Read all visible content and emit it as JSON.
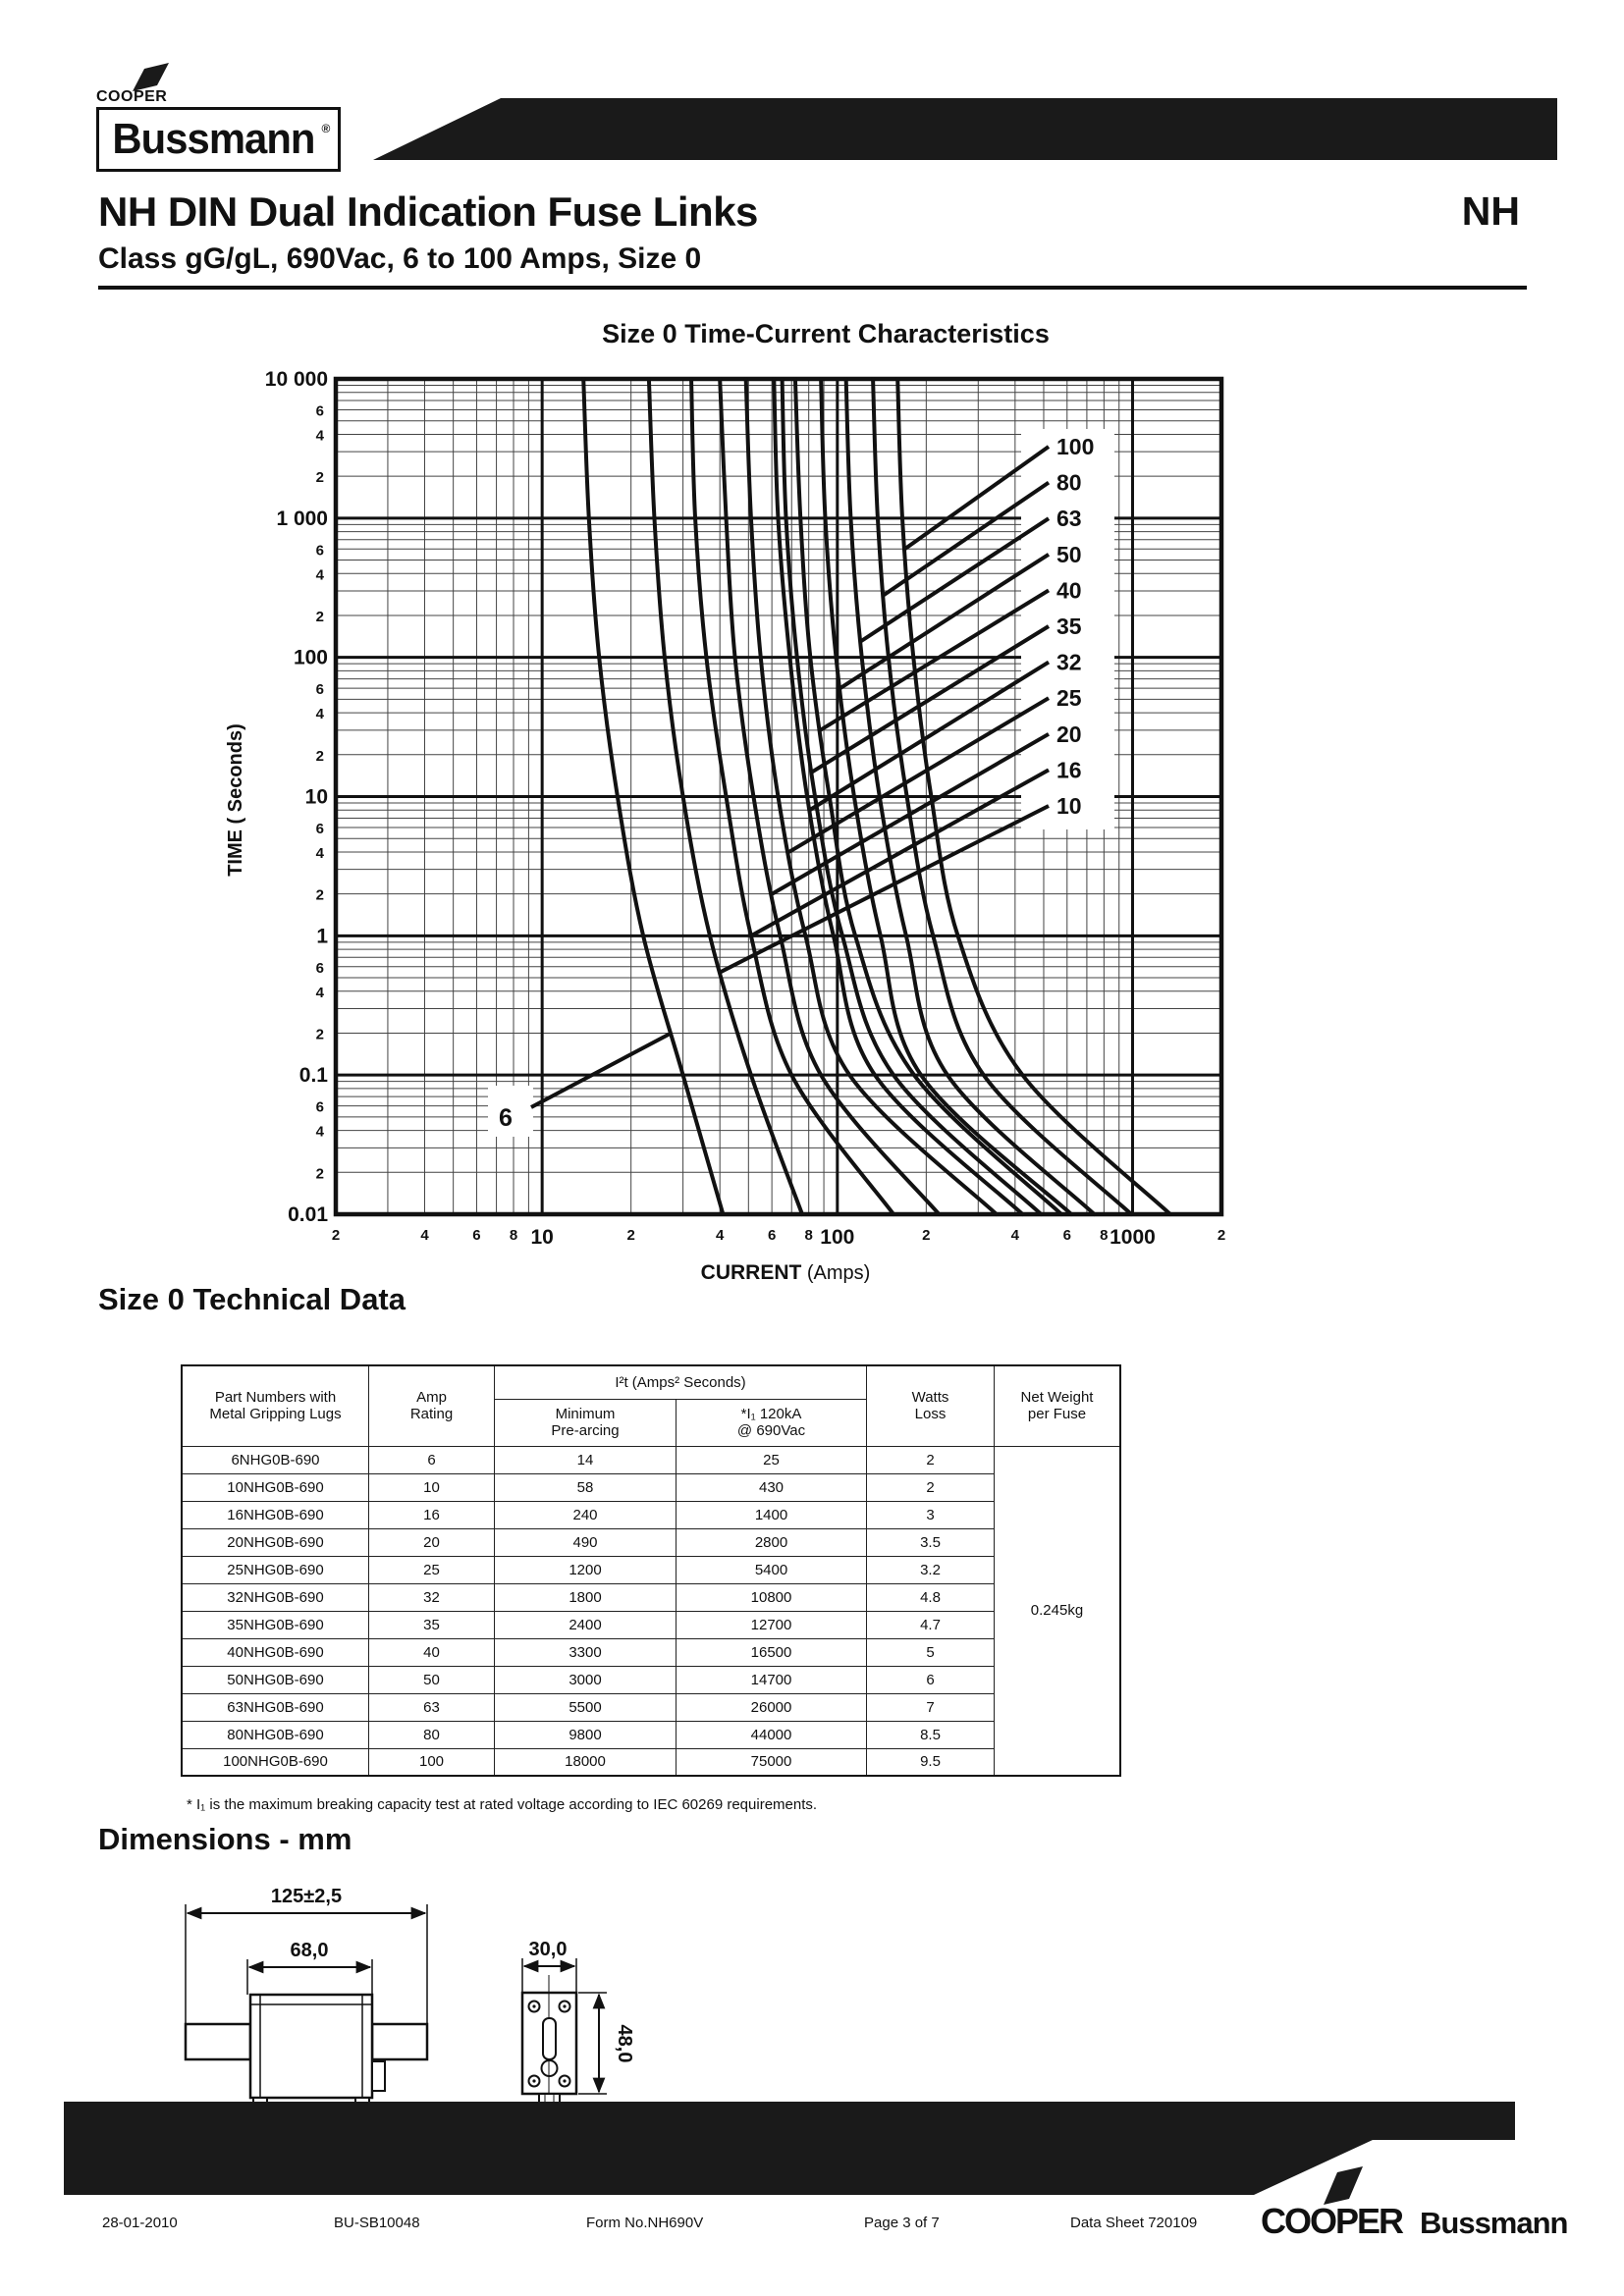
{
  "header": {
    "brand_top": "COOPER",
    "brand_box": "Bussmann",
    "brand_reg": "®",
    "title": "NH DIN Dual Indication Fuse Links",
    "corner": "NH",
    "subtitle": "Class gG/gL, 690Vac, 6 to 100 Amps, Size 0"
  },
  "chart_data": {
    "type": "line",
    "title": "Size 0 Time-Current Characteristics",
    "xlabel": "CURRENT",
    "xlabel_unit": "(Amps)",
    "ylabel": "TIME ( Seconds)",
    "x_scale": "log",
    "y_scale": "log",
    "xlim": [
      2,
      2000
    ],
    "ylim": [
      0.01,
      10000
    ],
    "grid": true,
    "x_decade_ticks": [
      10,
      100,
      1000
    ],
    "x_minor_tick_labels": [
      2,
      4,
      6,
      8
    ],
    "y_decade_ticks": [
      10000,
      1000,
      100,
      10,
      1,
      0.1,
      0.01
    ],
    "y_decade_labels": [
      "10 000",
      "1 000",
      "100",
      "10",
      "1",
      "0.1",
      "0.01"
    ],
    "y_minor_tick_labels": [
      6,
      4,
      2
    ],
    "series": [
      {
        "name": "6",
        "points": [
          [
            13.8,
            10000
          ],
          [
            14.4,
            1000
          ],
          [
            15.6,
            100
          ],
          [
            18,
            10
          ],
          [
            22,
            1
          ],
          [
            30,
            0.1
          ],
          [
            41,
            0.01
          ]
        ]
      },
      {
        "name": "10",
        "points": [
          [
            23,
            10000
          ],
          [
            24,
            1000
          ],
          [
            26,
            100
          ],
          [
            30,
            10
          ],
          [
            37,
            1
          ],
          [
            51,
            0.1
          ],
          [
            76,
            0.01
          ]
        ]
      },
      {
        "name": "16",
        "points": [
          [
            32,
            10000
          ],
          [
            33,
            1000
          ],
          [
            36,
            100
          ],
          [
            42,
            10
          ],
          [
            51,
            1
          ],
          [
            70,
            0.1
          ],
          [
            155,
            0.01
          ]
        ]
      },
      {
        "name": "20",
        "points": [
          [
            40,
            10000
          ],
          [
            42,
            1000
          ],
          [
            45,
            100
          ],
          [
            52,
            10
          ],
          [
            64,
            1
          ],
          [
            88,
            0.1
          ],
          [
            221,
            0.01
          ]
        ]
      },
      {
        "name": "25",
        "points": [
          [
            49,
            10000
          ],
          [
            51,
            1000
          ],
          [
            55,
            100
          ],
          [
            63,
            10
          ],
          [
            78,
            1
          ],
          [
            110,
            0.1
          ],
          [
            346,
            0.01
          ]
        ]
      },
      {
        "name": "32",
        "points": [
          [
            61,
            10000
          ],
          [
            63,
            1000
          ],
          [
            69,
            100
          ],
          [
            79,
            10
          ],
          [
            97,
            1
          ],
          [
            134,
            0.1
          ],
          [
            424,
            0.01
          ]
        ]
      },
      {
        "name": "35",
        "points": [
          [
            65,
            10000
          ],
          [
            67,
            1000
          ],
          [
            73,
            100
          ],
          [
            84,
            10
          ],
          [
            104,
            1
          ],
          [
            155,
            0.1
          ],
          [
            490,
            0.01
          ]
        ]
      },
      {
        "name": "40",
        "points": [
          [
            72,
            10000
          ],
          [
            75,
            1000
          ],
          [
            81,
            100
          ],
          [
            94,
            10
          ],
          [
            115,
            1
          ],
          [
            182,
            0.1
          ],
          [
            574,
            0.01
          ]
        ]
      },
      {
        "name": "50",
        "points": [
          [
            88,
            10000
          ],
          [
            91,
            1000
          ],
          [
            99,
            100
          ],
          [
            114,
            10
          ],
          [
            140,
            1
          ],
          [
            192,
            0.1
          ],
          [
            620,
            0.01
          ]
        ]
      },
      {
        "name": "63",
        "points": [
          [
            107,
            10000
          ],
          [
            111,
            1000
          ],
          [
            121,
            100
          ],
          [
            139,
            10
          ],
          [
            171,
            1
          ],
          [
            236,
            0.1
          ],
          [
            742,
            0.01
          ]
        ]
      },
      {
        "name": "80",
        "points": [
          [
            132,
            10000
          ],
          [
            137,
            1000
          ],
          [
            149,
            100
          ],
          [
            172,
            10
          ],
          [
            211,
            1
          ],
          [
            313,
            0.1
          ],
          [
            990,
            0.01
          ]
        ]
      },
      {
        "name": "100",
        "points": [
          [
            160,
            10000
          ],
          [
            166,
            1000
          ],
          [
            181,
            100
          ],
          [
            208,
            10
          ],
          [
            256,
            1
          ],
          [
            424,
            0.1
          ],
          [
            1342,
            0.01
          ]
        ]
      }
    ],
    "curve_labels": [
      {
        "name": "100",
        "t": 600
      },
      {
        "name": "80",
        "t": 280
      },
      {
        "name": "63",
        "t": 130
      },
      {
        "name": "50",
        "t": 60
      },
      {
        "name": "40",
        "t": 30
      },
      {
        "name": "35",
        "t": 15
      },
      {
        "name": "32",
        "t": 8
      },
      {
        "name": "25",
        "t": 4
      },
      {
        "name": "20",
        "t": 2
      },
      {
        "name": "16",
        "t": 1
      },
      {
        "name": "10",
        "t": 0.55
      }
    ],
    "label_6": {
      "name": "6",
      "t": 0.2
    }
  },
  "table": {
    "heading": "Size 0 Technical Data",
    "headers": {
      "part_line1": "Part Numbers with",
      "part_line2": "Metal Gripping Lugs",
      "amp_line1": "Amp",
      "amp_line2": "Rating",
      "i2t_group": "I²t (Amps² Seconds)",
      "min_line1": "Minimum",
      "min_line2": "Pre-arcing",
      "i1_line1": "*I₁ 120kA",
      "i1_line2": "@ 690Vac",
      "watts_line1": "Watts",
      "watts_line2": "Loss",
      "weight_line1": "Net Weight",
      "weight_line2": "per Fuse"
    },
    "rows": [
      [
        "6NHG0B-690",
        "6",
        "14",
        "25",
        "2"
      ],
      [
        "10NHG0B-690",
        "10",
        "58",
        "430",
        "2"
      ],
      [
        "16NHG0B-690",
        "16",
        "240",
        "1400",
        "3"
      ],
      [
        "20NHG0B-690",
        "20",
        "490",
        "2800",
        "3.5"
      ],
      [
        "25NHG0B-690",
        "25",
        "1200",
        "5400",
        "3.2"
      ],
      [
        "32NHG0B-690",
        "32",
        "1800",
        "10800",
        "4.8"
      ],
      [
        "35NHG0B-690",
        "35",
        "2400",
        "12700",
        "4.7"
      ],
      [
        "40NHG0B-690",
        "40",
        "3300",
        "16500",
        "5"
      ],
      [
        "50NHG0B-690",
        "50",
        "3000",
        "14700",
        "6"
      ],
      [
        "63NHG0B-690",
        "63",
        "5500",
        "26000",
        "7"
      ],
      [
        "80NHG0B-690",
        "80",
        "9800",
        "44000",
        "8.5"
      ],
      [
        "100NHG0B-690",
        "100",
        "18000",
        "75000",
        "9.5"
      ]
    ],
    "net_weight": "0.245kg",
    "footnote": "* I₁ is the maximum breaking capacity test at rated voltage according to IEC 60269 requirements."
  },
  "dimensions": {
    "heading": "Dimensions - mm",
    "front": {
      "overall": "125±2,5",
      "body": "68,0"
    },
    "side": {
      "width": "30,0",
      "height": "48,0"
    }
  },
  "footer": {
    "date": "28-01-2010",
    "doc": "BU-SB10048",
    "form": "Form No.NH690V",
    "page": "Page 3 of 7",
    "datasheet": "Data Sheet 720109",
    "brand1": "COOPER",
    "brand2": "Bussmann"
  }
}
